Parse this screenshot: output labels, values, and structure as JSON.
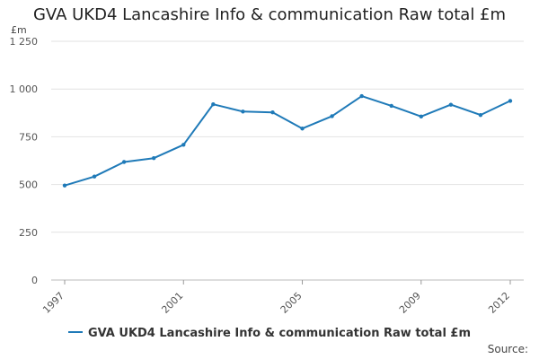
{
  "chart_data": {
    "type": "line",
    "title": "GVA UKD4 Lancashire Info & communication Raw total £m",
    "ylabel": "£m",
    "xlabel": "",
    "x": [
      1997,
      1998,
      1999,
      2000,
      2001,
      2002,
      2003,
      2004,
      2005,
      2006,
      2007,
      2008,
      2009,
      2010,
      2011,
      2012
    ],
    "x_ticks": [
      "1997",
      "2001",
      "2005",
      "2009",
      "2012"
    ],
    "y_ticks": [
      "0",
      "250",
      "500",
      "750",
      "1 000",
      "1 250"
    ],
    "ylim": [
      0,
      1250
    ],
    "series": [
      {
        "name": "GVA UKD4 Lancashire Info & communication Raw total £m",
        "color": "#1f7ab8",
        "values": [
          495,
          542,
          618,
          638,
          708,
          920,
          882,
          878,
          793,
          858,
          963,
          912,
          856,
          918,
          864,
          938
        ]
      }
    ],
    "grid": true,
    "legend": "bottom"
  },
  "source_label": "Source:"
}
